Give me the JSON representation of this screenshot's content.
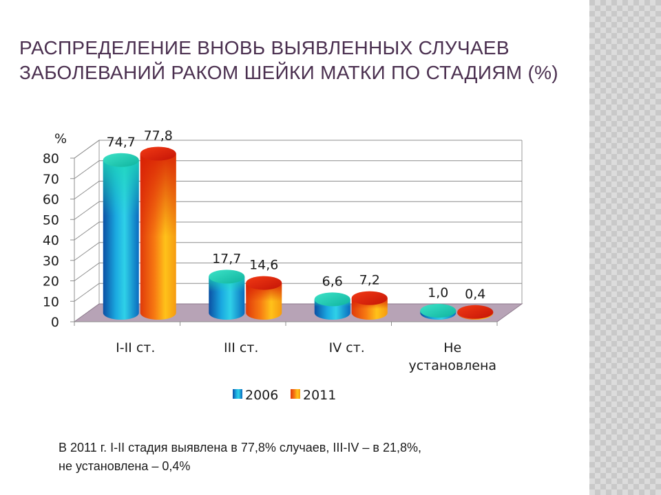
{
  "slide": {
    "title_line1": "РАСПРЕДЕЛЕНИЕ ВНОВЬ ВЫЯВЛЕННЫХ СЛУЧАЕВ",
    "title_line2": "ЗАБОЛЕВАНИЙ РАКОМ ШЕЙКИ МАТКИ ПО СТАДИЯМ (%)",
    "footnote_line1": "В 2011 г. I-II стадия выявлена в 77,8% случаев, III-IV – в 21,8%,",
    "footnote_line2": "не установлена – 0,4%"
  },
  "colors": {
    "title": "#4a2f4f",
    "series_2006": "#1aa3d9",
    "series_2011": "#f26a10",
    "floor": "#b7a3b6"
  },
  "chart_data": {
    "type": "bar",
    "three_d": true,
    "y_unit_label": "%",
    "ylim": [
      0,
      80
    ],
    "y_ticks": [
      "0",
      "10",
      "20",
      "30",
      "40",
      "50",
      "60",
      "70",
      "80"
    ],
    "grid": true,
    "legend_position": "bottom",
    "categories": [
      "I-II ст.",
      "III ст.",
      "IV ст.",
      "Не установлена"
    ],
    "category_lines": [
      [
        "I-II ст."
      ],
      [
        "III ст."
      ],
      [
        "IV ст."
      ],
      [
        "Не",
        "установлена"
      ]
    ],
    "series": [
      {
        "name": "2006",
        "values": [
          74.7,
          17.7,
          6.6,
          1.0
        ],
        "labels": [
          "74,7",
          "17,7",
          "6,6",
          "1,0"
        ]
      },
      {
        "name": "2011",
        "values": [
          77.8,
          14.6,
          7.2,
          0.4
        ],
        "labels": [
          "77,8",
          "14,6",
          "7,2",
          "0,4"
        ]
      }
    ]
  }
}
